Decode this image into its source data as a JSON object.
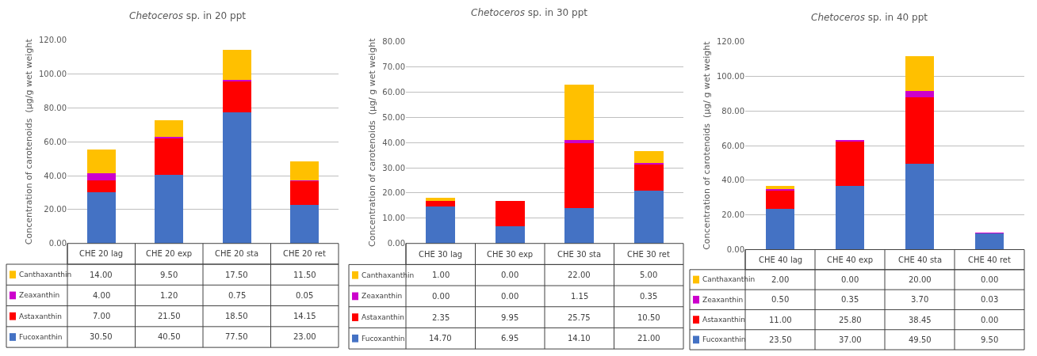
{
  "chart_data": [
    {
      "type": "bar",
      "stacked": true,
      "title": "Chetoceros sp. in 20 ppt",
      "ylabel": "Concentration of carotenoids  (µg/g wet weight",
      "categories": [
        "CHE 20 lag",
        "CHE 20 exp",
        "CHE 20 sta",
        "CHE 20 ret"
      ],
      "ylim": [
        0,
        120
      ],
      "yticks": [
        {
          "value": 0,
          "label": "0.00"
        },
        {
          "value": 20,
          "label": "20.00"
        },
        {
          "value": 40,
          "label": "40.00"
        },
        {
          "value": 60,
          "label": "60.00"
        },
        {
          "value": 80,
          "label": "80.00"
        },
        {
          "value": 100,
          "label": "100.00"
        },
        {
          "value": 120,
          "label": "120.00"
        }
      ],
      "grid": "y",
      "legend": "bottom left",
      "series": [
        {
          "name": "Fucoxanthin",
          "color": "#4472c4",
          "values": [
            30.5,
            40.5,
            77.5,
            23.0
          ],
          "value_labels": [
            "30.50",
            "40.50",
            "77.50",
            "23.00"
          ]
        },
        {
          "name": "Astaxanthin",
          "color": "#ff0000",
          "values": [
            7.0,
            21.5,
            18.5,
            14.15
          ],
          "value_labels": [
            "7.00",
            "21.50",
            "18.50",
            "14.15"
          ]
        },
        {
          "name": "Zeaxanthin",
          "color": "#cc00cc",
          "values": [
            4.0,
            1.2,
            0.75,
            0.05
          ],
          "value_labels": [
            "4.00",
            "1.20",
            "0.75",
            "0.05"
          ]
        },
        {
          "name": "Canthaxanthin",
          "color": "#ffc000",
          "values": [
            14.0,
            9.5,
            17.5,
            11.5
          ],
          "value_labels": [
            "14.00",
            "9.50",
            "17.50",
            "11.50"
          ]
        }
      ]
    },
    {
      "type": "bar",
      "stacked": true,
      "title": "Chetoceros sp. in 30 ppt",
      "ylabel": "Concentration of carotenoids  (µg/ g wet weight",
      "categories": [
        "CHE 30 lag",
        "CHE 30 exp",
        "CHE 30 sta",
        "CHE 30 ret"
      ],
      "ylim": [
        0,
        80
      ],
      "yticks": [
        {
          "value": 0,
          "label": "0.00"
        },
        {
          "value": 10,
          "label": "10.00"
        },
        {
          "value": 20,
          "label": "20.00"
        },
        {
          "value": 30,
          "label": "30.00"
        },
        {
          "value": 40,
          "label": "40.00"
        },
        {
          "value": 50,
          "label": "50.00"
        },
        {
          "value": 60,
          "label": "60.00"
        },
        {
          "value": 70,
          "label": "70.00"
        },
        {
          "value": 80,
          "label": "80.00"
        }
      ],
      "grid": "y",
      "legend": "bottom left",
      "series": [
        {
          "name": "Fucoxanthin",
          "color": "#4472c4",
          "values": [
            14.7,
            6.95,
            14.1,
            21.0
          ],
          "value_labels": [
            "14.70",
            "6.95",
            "14.10",
            "21.00"
          ]
        },
        {
          "name": "Astaxanthin",
          "color": "#ff0000",
          "values": [
            2.35,
            9.95,
            25.75,
            10.5
          ],
          "value_labels": [
            "2.35",
            "9.95",
            "25.75",
            "10.50"
          ]
        },
        {
          "name": "Zeaxanthin",
          "color": "#cc00cc",
          "values": [
            0.0,
            0.0,
            1.15,
            0.35
          ],
          "value_labels": [
            "0.00",
            "0.00",
            "1.15",
            "0.35"
          ]
        },
        {
          "name": "Canthaxanthin",
          "color": "#ffc000",
          "values": [
            1.0,
            0.0,
            22.0,
            5.0
          ],
          "value_labels": [
            "1.00",
            "0.00",
            "22.00",
            "5.00"
          ]
        }
      ]
    },
    {
      "type": "bar",
      "stacked": true,
      "title": "Chetoceros sp. in 40 ppt",
      "ylabel": "Concentration of carotenoids  (µg/ g wet weight",
      "categories": [
        "CHE 40 lag",
        "CHE 40 exp",
        "CHE 40 sta",
        "CHE 40 ret"
      ],
      "ylim": [
        0,
        120
      ],
      "yticks": [
        {
          "value": 0,
          "label": "0.00"
        },
        {
          "value": 20,
          "label": "20.00"
        },
        {
          "value": 40,
          "label": "40.00"
        },
        {
          "value": 60,
          "label": "60.00"
        },
        {
          "value": 80,
          "label": "80.00"
        },
        {
          "value": 100,
          "label": "100.00"
        },
        {
          "value": 120,
          "label": "120.00"
        }
      ],
      "grid": "y",
      "legend": "bottom left",
      "series": [
        {
          "name": "Fucoxanthin",
          "color": "#4472c4",
          "values": [
            23.5,
            37.0,
            49.5,
            9.5
          ],
          "value_labels": [
            "23.50",
            "37.00",
            "49.50",
            "9.50"
          ]
        },
        {
          "name": "Astaxanthin",
          "color": "#ff0000",
          "values": [
            11.0,
            25.8,
            38.45,
            0.0
          ],
          "value_labels": [
            "11.00",
            "25.80",
            "38.45",
            "0.00"
          ]
        },
        {
          "name": "Zeaxanthin",
          "color": "#cc00cc",
          "values": [
            0.5,
            0.35,
            3.7,
            0.03
          ],
          "value_labels": [
            "0.50",
            "0.35",
            "3.70",
            "0.03"
          ]
        },
        {
          "name": "Canthaxanthin",
          "color": "#ffc000",
          "values": [
            2.0,
            0.0,
            20.0,
            0.0
          ],
          "value_labels": [
            "2.00",
            "0.00",
            "20.00",
            "0.00"
          ]
        }
      ]
    }
  ]
}
